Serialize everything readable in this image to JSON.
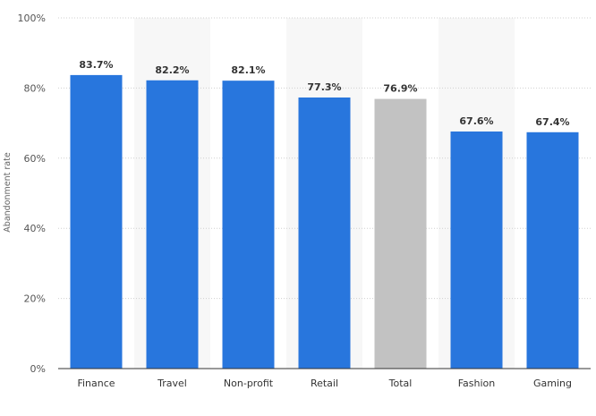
{
  "chart_data": {
    "type": "bar",
    "categories": [
      "Finance",
      "Travel",
      "Non-profit",
      "Retail",
      "Total",
      "Fashion",
      "Gaming"
    ],
    "values": [
      83.7,
      82.2,
      82.1,
      77.3,
      76.9,
      67.6,
      67.4
    ],
    "data_labels": [
      "83.7%",
      "82.2%",
      "82.1%",
      "77.3%",
      "76.9%",
      "67.6%",
      "67.4%"
    ],
    "highlight_category": "Total",
    "ylabel": "Abandonment rate",
    "xlabel": "",
    "title": "",
    "ylim": [
      0,
      100
    ],
    "yticks": [
      0,
      20,
      40,
      60,
      80,
      100
    ],
    "ytick_labels": [
      "0%",
      "20%",
      "40%",
      "60%",
      "80%",
      "100%"
    ],
    "grid": true,
    "legend": "none",
    "colors": {
      "bar": "#2876dd",
      "highlight": "#c2c2c2",
      "band": "#f7f7f7",
      "grid": "#cfcfcf",
      "axis": "#333333"
    }
  }
}
